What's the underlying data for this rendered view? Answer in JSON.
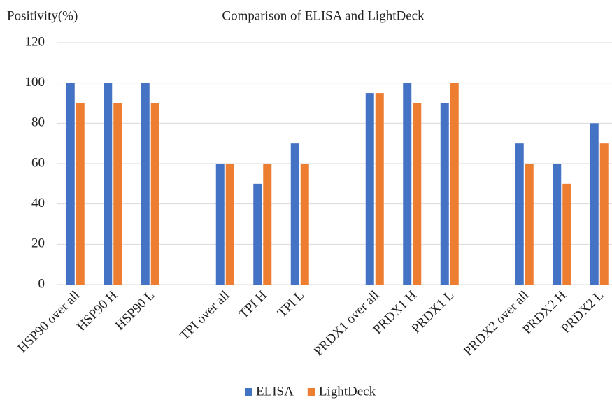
{
  "chart_data": {
    "type": "bar",
    "title": "Comparison of ELISA and LightDeck",
    "y_label": "Positivity(%)",
    "categories": [
      "HSP90 over all",
      "HSP90 H",
      "HSP90 L",
      null,
      "TPI over all",
      "TPI H",
      "TPI L",
      null,
      "PRDX1 over all",
      "PRDX1 H",
      "PRDX1 L",
      null,
      "PRDX2 over all",
      "PRDX2 H",
      "PRDX2 L"
    ],
    "series": [
      {
        "name": "ELISA",
        "color": "#4472c4",
        "values": [
          100,
          100,
          100,
          null,
          60,
          50,
          70,
          null,
          95,
          100,
          90,
          null,
          70,
          60,
          80
        ]
      },
      {
        "name": "LightDeck",
        "color": "#ed7d31",
        "values": [
          90,
          90,
          90,
          null,
          60,
          60,
          60,
          null,
          95,
          90,
          100,
          null,
          60,
          50,
          70
        ]
      }
    ],
    "ylim": [
      0,
      120
    ],
    "yticks": [
      0,
      20,
      40,
      60,
      80,
      100,
      120
    ],
    "grid": true,
    "legend": "bottom"
  }
}
